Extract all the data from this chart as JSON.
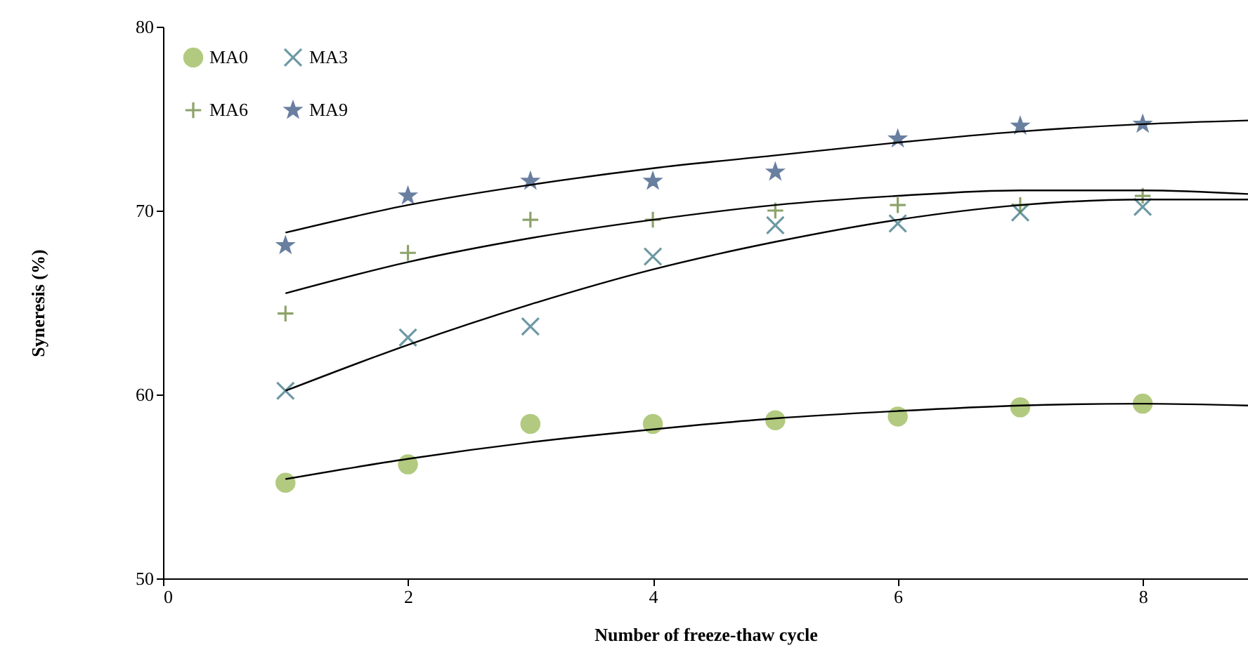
{
  "chart_data": {
    "type": "scatter",
    "xlabel": "Number of freeze-thaw cycle",
    "ylabel": "Syneresis (%)",
    "xlim": [
      0,
      8.86
    ],
    "xticks": [
      0,
      2,
      4,
      6,
      8
    ],
    "ylim": [
      50,
      80
    ],
    "yticks": [
      50,
      60,
      70,
      80
    ],
    "grid": false,
    "legend": "top left",
    "series": [
      {
        "name": "MA0",
        "color": "#92b54a",
        "marker": "circle",
        "x": [
          1,
          2,
          3,
          4,
          5,
          6,
          7,
          8
        ],
        "values": [
          55.2,
          56.2,
          58.4,
          58.4,
          58.6,
          58.8,
          59.3,
          59.5
        ]
      },
      {
        "name": "MA3",
        "color": "#2f6f7e",
        "marker": "cross",
        "x": [
          1,
          2,
          3,
          4,
          5,
          6,
          7,
          8
        ],
        "values": [
          60.2,
          63.1,
          63.7,
          67.5,
          69.2,
          69.3,
          69.9,
          70.2
        ]
      },
      {
        "name": "MA6",
        "color": "#5e7d2c",
        "marker": "plus",
        "x": [
          1,
          2,
          3,
          4,
          5,
          6,
          7,
          8
        ],
        "values": [
          64.4,
          67.7,
          69.5,
          69.5,
          70.0,
          70.3,
          70.3,
          70.8
        ]
      },
      {
        "name": "MA9",
        "color": "#2b4a78",
        "marker": "star",
        "x": [
          1,
          2,
          3,
          4,
          5,
          6,
          7,
          8
        ],
        "values": [
          68.1,
          70.8,
          71.6,
          71.6,
          72.1,
          73.9,
          74.6,
          74.7
        ]
      },
      {
        "type": "line",
        "color": "#000000",
        "x": [
          1,
          2,
          3,
          4,
          5,
          6,
          7,
          8,
          8.86
        ],
        "values": [
          55.4,
          56.5,
          57.4,
          58.1,
          58.7,
          59.1,
          59.4,
          59.5,
          59.4
        ]
      },
      {
        "type": "line",
        "color": "#000000",
        "x": [
          1,
          2,
          3,
          4,
          5,
          6,
          7,
          8,
          8.86
        ],
        "values": [
          60.2,
          62.7,
          64.9,
          66.8,
          68.3,
          69.5,
          70.3,
          70.6,
          70.6
        ]
      },
      {
        "type": "line",
        "color": "#000000",
        "x": [
          1,
          2,
          3,
          4,
          5,
          6,
          7,
          8,
          8.86
        ],
        "values": [
          65.5,
          67.2,
          68.5,
          69.5,
          70.3,
          70.8,
          71.1,
          71.1,
          70.9
        ]
      },
      {
        "type": "line",
        "color": "#000000",
        "x": [
          1,
          2,
          3,
          4,
          5,
          6,
          7,
          8,
          8.86
        ],
        "values": [
          68.8,
          70.3,
          71.4,
          72.3,
          73.0,
          73.7,
          74.3,
          74.7,
          74.9
        ]
      }
    ]
  }
}
